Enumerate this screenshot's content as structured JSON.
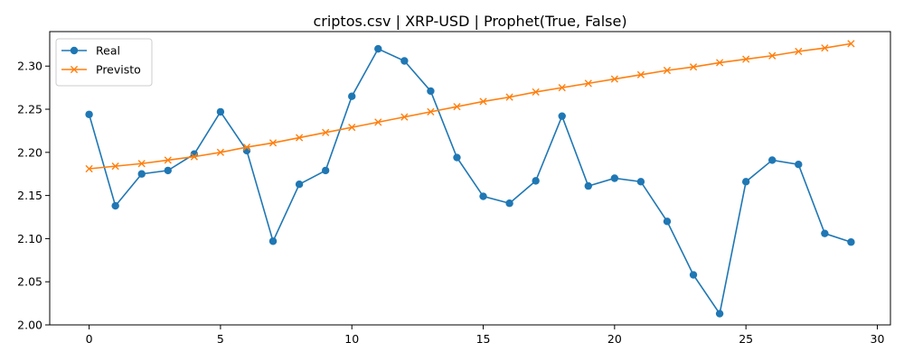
{
  "chart_data": {
    "type": "line",
    "title": "criptos.csv | XRP-USD | Prophet(True, False)",
    "xlabel": "",
    "ylabel": "",
    "xlim": [
      -1.5,
      30.5
    ],
    "ylim": [
      2.0,
      2.34
    ],
    "xticks": [
      0,
      5,
      10,
      15,
      20,
      25,
      30
    ],
    "xtick_labels": [
      "0",
      "5",
      "10",
      "15",
      "20",
      "25",
      "30"
    ],
    "yticks": [
      2.0,
      2.05,
      2.1,
      2.15,
      2.2,
      2.25,
      2.3
    ],
    "ytick_labels": [
      "2.00",
      "2.05",
      "2.10",
      "2.15",
      "2.20",
      "2.25",
      "2.30"
    ],
    "grid": false,
    "legend_position": "upper-left",
    "x": [
      0,
      1,
      2,
      3,
      4,
      5,
      6,
      7,
      8,
      9,
      10,
      11,
      12,
      13,
      14,
      15,
      16,
      17,
      18,
      19,
      20,
      21,
      22,
      23,
      24,
      25,
      26,
      27,
      28,
      29
    ],
    "series": [
      {
        "name": "Real",
        "color": "#1f77b4",
        "marker": "circle",
        "values": [
          2.244,
          2.138,
          2.175,
          2.179,
          2.198,
          2.247,
          2.202,
          2.097,
          2.163,
          2.179,
          2.265,
          2.32,
          2.306,
          2.271,
          2.194,
          2.149,
          2.141,
          2.167,
          2.242,
          2.161,
          2.17,
          2.166,
          2.12,
          2.058,
          2.013,
          2.166,
          2.191,
          2.186,
          2.106,
          2.096
        ]
      },
      {
        "name": "Previsto",
        "color": "#ff7f0e",
        "marker": "x",
        "values": [
          2.181,
          2.184,
          2.187,
          2.191,
          2.195,
          2.2,
          2.206,
          2.211,
          2.217,
          2.223,
          2.229,
          2.235,
          2.241,
          2.247,
          2.253,
          2.259,
          2.264,
          2.27,
          2.275,
          2.28,
          2.285,
          2.29,
          2.295,
          2.299,
          2.304,
          2.308,
          2.312,
          2.317,
          2.321,
          2.326
        ]
      }
    ]
  }
}
